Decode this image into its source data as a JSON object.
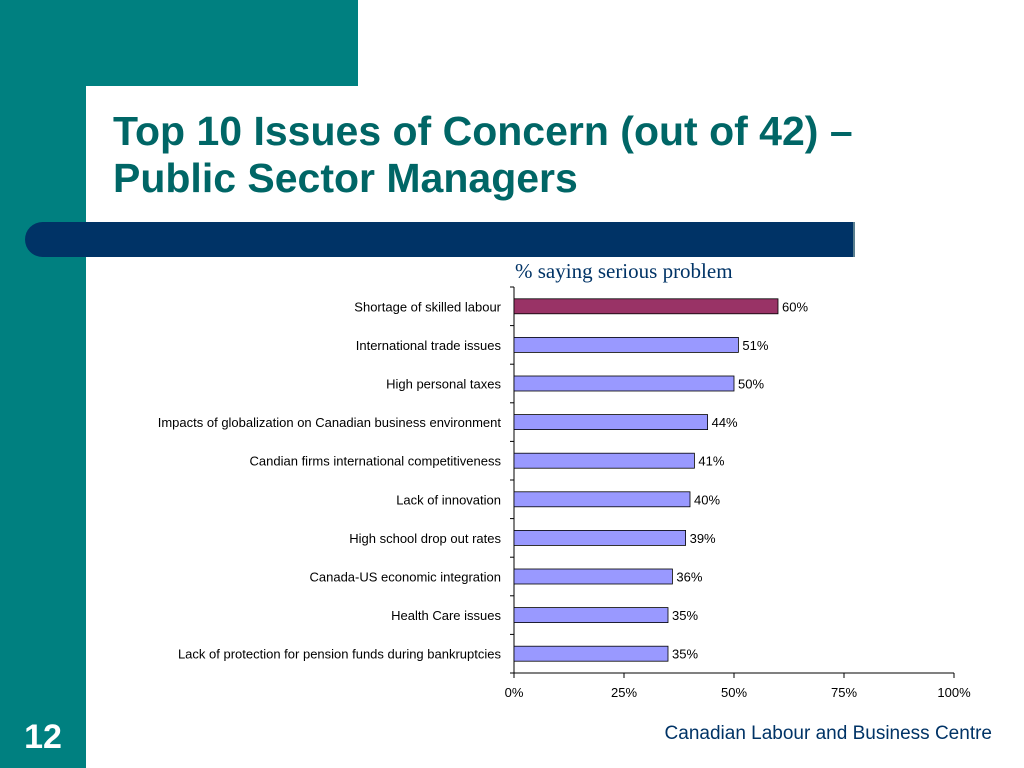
{
  "slide": {
    "title_line1": "Top 10 Issues of Concern (out of 42) –",
    "title_line2": "Public Sector Managers",
    "number": "12",
    "footer": "Canadian Labour and Business Centre"
  },
  "colors": {
    "teal": "#008080",
    "title": "#006666",
    "navy": "#003366",
    "bar_highlight": "#993366",
    "bar_default": "#9999ff"
  },
  "chart_data": {
    "type": "bar",
    "orientation": "horizontal",
    "subtitle": "% saying serious problem",
    "categories": [
      "Shortage of skilled labour",
      "International trade issues",
      "High personal taxes",
      "Impacts of globalization on Canadian business environment",
      "Candian firms international competitiveness",
      "Lack of innovation",
      "High school drop out rates",
      "Canada-US economic integration",
      "Health Care issues",
      "Lack of protection for pension funds during bankruptcies"
    ],
    "values": [
      60,
      51,
      50,
      44,
      41,
      40,
      39,
      36,
      35,
      35
    ],
    "data_labels": [
      "60%",
      "51%",
      "50%",
      "44%",
      "41%",
      "40%",
      "39%",
      "36%",
      "35%",
      "35%"
    ],
    "highlight_index": 0,
    "xlim": [
      0,
      100
    ],
    "x_ticks": [
      0,
      25,
      50,
      75,
      100
    ],
    "x_tick_labels": [
      "0%",
      "25%",
      "50%",
      "75%",
      "100%"
    ],
    "grid": false,
    "legend": "none"
  }
}
